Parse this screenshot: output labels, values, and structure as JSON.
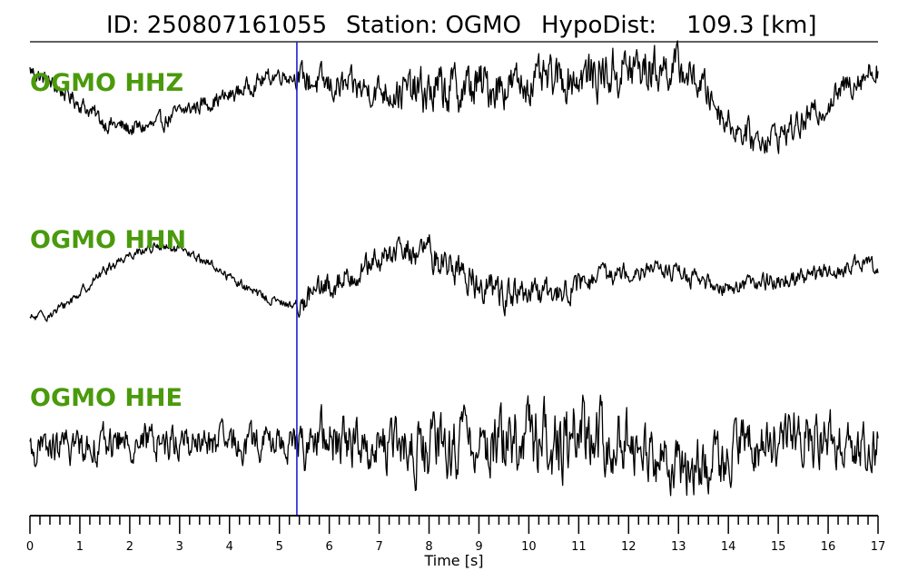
{
  "header": {
    "event_id": "ID: 250807161055",
    "station": "Station: OGMO",
    "hypodist": "HypoDist:    109.3 [km]"
  },
  "colors": {
    "trace": "#000000",
    "pick_line": "#1f1fd6",
    "channel_label": "#4a9a0c"
  },
  "chart_data": {
    "type": "line",
    "title": "ID: 250807161055   Station: OGMO   HypoDist:    109.3 [km]",
    "xlabel": "Time [s]",
    "xlim": [
      0,
      17
    ],
    "x_ticks": [
      "0",
      "1",
      "2",
      "3",
      "4",
      "5",
      "6",
      "7",
      "8",
      "9",
      "10",
      "11",
      "12",
      "13",
      "14",
      "15",
      "16",
      "17"
    ],
    "minor_tick_step": 0.2,
    "grid": false,
    "pick_time_s": 5.35,
    "series": [
      {
        "name": "OGMO HHZ",
        "envelope": [
          [
            0,
            0.55
          ],
          [
            0.5,
            0.3
          ],
          [
            1,
            0.05
          ],
          [
            1.5,
            -0.25
          ],
          [
            2,
            -0.35
          ],
          [
            2.5,
            -0.3
          ],
          [
            3,
            -0.1
          ],
          [
            3.5,
            0.05
          ],
          [
            4,
            0.15
          ],
          [
            4.5,
            0.35
          ],
          [
            5,
            0.5
          ],
          [
            5.35,
            0.45
          ],
          [
            6,
            0.3
          ],
          [
            7,
            0.25
          ],
          [
            8,
            0.2
          ],
          [
            9,
            0.3
          ],
          [
            10,
            0.35
          ],
          [
            11,
            0.45
          ],
          [
            12,
            0.55
          ],
          [
            13,
            0.6
          ],
          [
            13.5,
            0.3
          ],
          [
            14,
            -0.25
          ],
          [
            14.5,
            -0.5
          ],
          [
            15,
            -0.45
          ],
          [
            15.5,
            -0.25
          ],
          [
            16,
            0.05
          ],
          [
            16.5,
            0.4
          ],
          [
            17,
            0.6
          ]
        ],
        "noise_amplitude": [
          [
            0,
            0.18
          ],
          [
            5.3,
            0.18
          ],
          [
            5.5,
            0.32
          ],
          [
            7,
            0.32
          ],
          [
            8,
            0.5
          ],
          [
            9,
            0.5
          ],
          [
            10,
            0.4
          ],
          [
            11,
            0.45
          ],
          [
            12,
            0.55
          ],
          [
            13,
            0.4
          ],
          [
            14,
            0.3
          ],
          [
            15,
            0.3
          ],
          [
            16,
            0.28
          ],
          [
            17,
            0.3
          ]
        ]
      },
      {
        "name": "OGMO HHN",
        "envelope": [
          [
            0,
            -0.55
          ],
          [
            0.5,
            -0.45
          ],
          [
            1,
            -0.15
          ],
          [
            1.5,
            0.2
          ],
          [
            2,
            0.45
          ],
          [
            2.5,
            0.55
          ],
          [
            3,
            0.5
          ],
          [
            3.5,
            0.35
          ],
          [
            4,
            0.1
          ],
          [
            4.5,
            -0.15
          ],
          [
            5,
            -0.3
          ],
          [
            5.35,
            -0.35
          ],
          [
            5.6,
            -0.2
          ],
          [
            6,
            -0.05
          ],
          [
            6.5,
            0.15
          ],
          [
            7,
            0.35
          ],
          [
            7.5,
            0.5
          ],
          [
            8,
            0.45
          ],
          [
            8.5,
            0.25
          ],
          [
            9,
            0.0
          ],
          [
            9.5,
            -0.15
          ],
          [
            10,
            -0.2
          ],
          [
            10.5,
            -0.15
          ],
          [
            11,
            -0.05
          ],
          [
            11.5,
            0.1
          ],
          [
            12,
            0.2
          ],
          [
            12.5,
            0.25
          ],
          [
            13,
            0.15
          ],
          [
            13.5,
            0.0
          ],
          [
            14,
            -0.05
          ],
          [
            14.5,
            0.0
          ],
          [
            15,
            0.05
          ],
          [
            15.5,
            0.1
          ],
          [
            16,
            0.15
          ],
          [
            16.5,
            0.25
          ],
          [
            17,
            0.3
          ]
        ],
        "noise_amplitude": [
          [
            0,
            0.1
          ],
          [
            5.3,
            0.1
          ],
          [
            5.5,
            0.3
          ],
          [
            7,
            0.25
          ],
          [
            8,
            0.35
          ],
          [
            9,
            0.35
          ],
          [
            10,
            0.3
          ],
          [
            11,
            0.25
          ],
          [
            12,
            0.2
          ],
          [
            13,
            0.18
          ],
          [
            14,
            0.18
          ],
          [
            15,
            0.18
          ],
          [
            16,
            0.18
          ],
          [
            17,
            0.18
          ]
        ]
      },
      {
        "name": "OGMO HHE",
        "envelope": [
          [
            0,
            -0.1
          ],
          [
            1,
            0.0
          ],
          [
            2,
            0.05
          ],
          [
            3,
            0.05
          ],
          [
            4,
            0.0
          ],
          [
            5,
            0.05
          ],
          [
            5.35,
            0.0
          ],
          [
            6,
            0.1
          ],
          [
            7,
            0.0
          ],
          [
            8,
            -0.1
          ],
          [
            9,
            0.05
          ],
          [
            10,
            0.1
          ],
          [
            11,
            0.15
          ],
          [
            12,
            0.1
          ],
          [
            12.5,
            -0.2
          ],
          [
            13,
            -0.35
          ],
          [
            13.5,
            -0.3
          ],
          [
            14,
            -0.15
          ],
          [
            14.5,
            0.0
          ],
          [
            15,
            0.1
          ],
          [
            15.5,
            0.15
          ],
          [
            16,
            0.1
          ],
          [
            17,
            0.0
          ]
        ],
        "noise_amplitude": [
          [
            0,
            0.35
          ],
          [
            5.3,
            0.35
          ],
          [
            5.5,
            0.55
          ],
          [
            7,
            0.5
          ],
          [
            8,
            0.65
          ],
          [
            9,
            0.6
          ],
          [
            10,
            0.75
          ],
          [
            11,
            0.8
          ],
          [
            12,
            0.6
          ],
          [
            13,
            0.55
          ],
          [
            14,
            0.55
          ],
          [
            15,
            0.6
          ],
          [
            16,
            0.55
          ],
          [
            17,
            0.5
          ]
        ]
      }
    ]
  }
}
